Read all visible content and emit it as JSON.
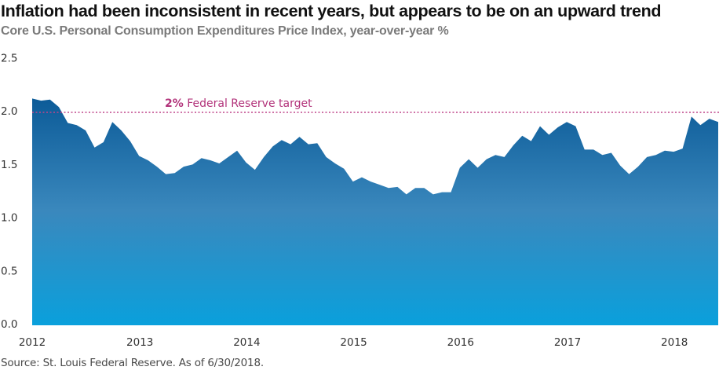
{
  "header": {
    "title": "Inflation had been inconsistent in recent years, but appears to be on an upward trend",
    "subtitle": "Core U.S. Personal Consumption Expenditures Price Index, year-over-year %"
  },
  "footer": {
    "source": "Source: St. Louis Federal Reserve. As of 6/30/2018."
  },
  "colors": {
    "fill_top": "#0b5a97",
    "fill_mid": "#3a88bd",
    "fill_bottom": "#0aa0dc",
    "reference_line": "#c0458a",
    "reference_text": "#b2327a"
  },
  "chart_data": {
    "type": "area",
    "title": "Inflation had been inconsistent in recent years, but appears to be on an upward trend",
    "subtitle": "Core U.S. Personal Consumption Expenditures Price Index, year-over-year %",
    "xlabel": "",
    "ylabel": "",
    "ylim": [
      0,
      2.5
    ],
    "yticks": [
      "0.0",
      "0.5",
      "1.0",
      "1.5",
      "2.0",
      "2.5"
    ],
    "ytick_values": [
      0,
      0.5,
      1.0,
      1.5,
      2.0,
      2.5
    ],
    "xticks": [
      "2012",
      "2013",
      "2014",
      "2015",
      "2016",
      "2017",
      "2018"
    ],
    "x_start": "2012-01",
    "x_end": "2018-06",
    "frequency": "monthly",
    "grid": false,
    "legend": "none",
    "reference_line": {
      "value": 2.0,
      "label_bold": "2%",
      "label_rest": " Federal Reserve target",
      "style": "dotted"
    },
    "series": [
      {
        "name": "Core PCE YoY %",
        "x": [
          "2012-01",
          "2012-02",
          "2012-03",
          "2012-04",
          "2012-05",
          "2012-06",
          "2012-07",
          "2012-08",
          "2012-09",
          "2012-10",
          "2012-11",
          "2012-12",
          "2013-01",
          "2013-02",
          "2013-03",
          "2013-04",
          "2013-05",
          "2013-06",
          "2013-07",
          "2013-08",
          "2013-09",
          "2013-10",
          "2013-11",
          "2013-12",
          "2014-01",
          "2014-02",
          "2014-03",
          "2014-04",
          "2014-05",
          "2014-06",
          "2014-07",
          "2014-08",
          "2014-09",
          "2014-10",
          "2014-11",
          "2014-12",
          "2015-01",
          "2015-02",
          "2015-03",
          "2015-04",
          "2015-05",
          "2015-06",
          "2015-07",
          "2015-08",
          "2015-09",
          "2015-10",
          "2015-11",
          "2015-12",
          "2016-01",
          "2016-02",
          "2016-03",
          "2016-04",
          "2016-05",
          "2016-06",
          "2016-07",
          "2016-08",
          "2016-09",
          "2016-10",
          "2016-11",
          "2016-12",
          "2017-01",
          "2017-02",
          "2017-03",
          "2017-04",
          "2017-05",
          "2017-06",
          "2017-07",
          "2017-08",
          "2017-09",
          "2017-10",
          "2017-11",
          "2017-12",
          "2018-01",
          "2018-02",
          "2018-03",
          "2018-04",
          "2018-05",
          "2018-06"
        ],
        "values": [
          2.13,
          2.11,
          2.12,
          2.05,
          1.9,
          1.88,
          1.83,
          1.67,
          1.72,
          1.91,
          1.83,
          1.73,
          1.59,
          1.55,
          1.49,
          1.42,
          1.43,
          1.49,
          1.51,
          1.57,
          1.55,
          1.52,
          1.58,
          1.64,
          1.53,
          1.46,
          1.58,
          1.68,
          1.74,
          1.7,
          1.77,
          1.7,
          1.71,
          1.58,
          1.52,
          1.47,
          1.35,
          1.39,
          1.35,
          1.32,
          1.29,
          1.3,
          1.23,
          1.29,
          1.29,
          1.23,
          1.25,
          1.25,
          1.48,
          1.56,
          1.48,
          1.56,
          1.6,
          1.58,
          1.69,
          1.78,
          1.73,
          1.87,
          1.79,
          1.86,
          1.91,
          1.87,
          1.65,
          1.65,
          1.6,
          1.62,
          1.5,
          1.42,
          1.49,
          1.58,
          1.6,
          1.64,
          1.63,
          1.66,
          1.96,
          1.88,
          1.94,
          1.91
        ]
      }
    ]
  }
}
